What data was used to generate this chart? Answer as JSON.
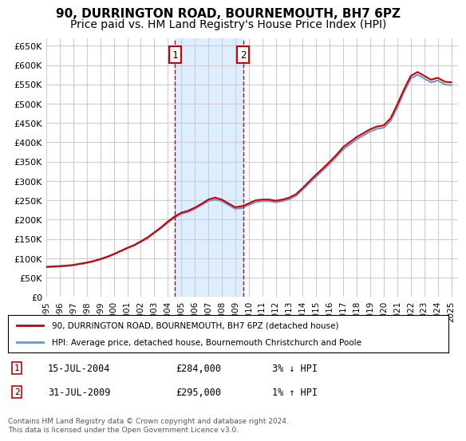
{
  "title": "90, DURRINGTON ROAD, BOURNEMOUTH, BH7 6PZ",
  "subtitle": "Price paid vs. HM Land Registry's House Price Index (HPI)",
  "title_fontsize": 11,
  "subtitle_fontsize": 10,
  "xlim": [
    1995.0,
    2025.5
  ],
  "ylim": [
    0,
    670000
  ],
  "yticks": [
    0,
    50000,
    100000,
    150000,
    200000,
    250000,
    300000,
    350000,
    400000,
    450000,
    500000,
    550000,
    600000,
    650000
  ],
  "ytick_labels": [
    "£0",
    "£50K",
    "£100K",
    "£150K",
    "£200K",
    "£250K",
    "£300K",
    "£350K",
    "£400K",
    "£450K",
    "£500K",
    "£550K",
    "£600K",
    "£650K"
  ],
  "xtick_years": [
    1995,
    1996,
    1997,
    1998,
    1999,
    2000,
    2001,
    2002,
    2003,
    2004,
    2005,
    2006,
    2007,
    2008,
    2009,
    2010,
    2011,
    2012,
    2013,
    2014,
    2015,
    2016,
    2017,
    2018,
    2019,
    2020,
    2021,
    2022,
    2023,
    2024,
    2025
  ],
  "hpi_x": [
    1995.0,
    1995.5,
    1996.0,
    1996.5,
    1997.0,
    1997.5,
    1998.0,
    1998.5,
    1999.0,
    1999.5,
    2000.0,
    2000.5,
    2001.0,
    2001.5,
    2002.0,
    2002.5,
    2003.0,
    2003.5,
    2004.0,
    2004.5,
    2005.0,
    2005.5,
    2006.0,
    2006.5,
    2007.0,
    2007.5,
    2008.0,
    2008.5,
    2009.0,
    2009.5,
    2010.0,
    2010.5,
    2011.0,
    2011.5,
    2012.0,
    2012.5,
    2013.0,
    2013.5,
    2014.0,
    2014.5,
    2015.0,
    2015.5,
    2016.0,
    2016.5,
    2017.0,
    2017.5,
    2018.0,
    2018.5,
    2019.0,
    2019.5,
    2020.0,
    2020.5,
    2021.0,
    2021.5,
    2022.0,
    2022.5,
    2023.0,
    2023.5,
    2024.0,
    2024.5,
    2025.0
  ],
  "hpi_y": [
    77000,
    78000,
    79000,
    80000,
    82000,
    85000,
    88000,
    92000,
    97000,
    103000,
    110000,
    118000,
    126000,
    133000,
    142000,
    152000,
    165000,
    178000,
    192000,
    205000,
    215000,
    220000,
    228000,
    238000,
    248000,
    252000,
    248000,
    238000,
    228000,
    230000,
    238000,
    245000,
    248000,
    248000,
    245000,
    248000,
    253000,
    262000,
    278000,
    295000,
    312000,
    328000,
    345000,
    363000,
    382000,
    395000,
    408000,
    418000,
    428000,
    435000,
    438000,
    455000,
    490000,
    530000,
    565000,
    575000,
    565000,
    555000,
    560000,
    550000,
    548000
  ],
  "price_x": [
    1995.0,
    1995.5,
    1996.0,
    1996.5,
    1997.0,
    1997.5,
    1998.0,
    1998.5,
    1999.0,
    1999.5,
    2000.0,
    2000.5,
    2001.0,
    2001.5,
    2002.0,
    2002.5,
    2003.0,
    2003.5,
    2004.0,
    2004.5,
    2005.0,
    2005.5,
    2006.0,
    2006.5,
    2007.0,
    2007.5,
    2008.0,
    2008.5,
    2009.0,
    2009.5,
    2010.0,
    2010.5,
    2011.0,
    2011.5,
    2012.0,
    2012.5,
    2013.0,
    2013.5,
    2014.0,
    2014.5,
    2015.0,
    2015.5,
    2016.0,
    2016.5,
    2017.0,
    2017.5,
    2018.0,
    2018.5,
    2019.0,
    2019.5,
    2020.0,
    2020.5,
    2021.0,
    2021.5,
    2022.0,
    2022.5,
    2023.0,
    2023.5,
    2024.0,
    2024.5,
    2025.0
  ],
  "price_y": [
    78000,
    79000,
    80000,
    81000,
    83000,
    86000,
    89000,
    93000,
    98000,
    104000,
    111000,
    119000,
    127000,
    134000,
    144000,
    154000,
    167000,
    180000,
    195000,
    208000,
    218000,
    223000,
    231000,
    241000,
    252000,
    257000,
    252000,
    242000,
    232000,
    235000,
    242000,
    250000,
    252000,
    252000,
    249000,
    252000,
    257000,
    266000,
    282000,
    300000,
    317000,
    333000,
    350000,
    368000,
    388000,
    401000,
    414000,
    424000,
    434000,
    441000,
    444000,
    462000,
    498000,
    537000,
    572000,
    582000,
    572000,
    562000,
    567000,
    557000,
    555000
  ],
  "sale1_x": 2004.54,
  "sale1_y": 284000,
  "sale2_x": 2009.58,
  "sale2_y": 295000,
  "shade_x1": 2004.54,
  "shade_x2": 2009.58,
  "red_color": "#cc0000",
  "blue_color": "#6699cc",
  "shade_color": "#ddeeff",
  "marker_box_color": "#cc0000",
  "grid_color": "#cccccc",
  "bg_color": "#ffffff",
  "legend_label1": "90, DURRINGTON ROAD, BOURNEMOUTH, BH7 6PZ (detached house)",
  "legend_label2": "HPI: Average price, detached house, Bournemouth Christchurch and Poole",
  "table_row1_num": "1",
  "table_row1_date": "15-JUL-2004",
  "table_row1_price": "£284,000",
  "table_row1_hpi": "3% ↓ HPI",
  "table_row2_num": "2",
  "table_row2_date": "31-JUL-2009",
  "table_row2_price": "£295,000",
  "table_row2_hpi": "1% ↑ HPI",
  "footnote": "Contains HM Land Registry data © Crown copyright and database right 2024.\nThis data is licensed under the Open Government Licence v3.0."
}
